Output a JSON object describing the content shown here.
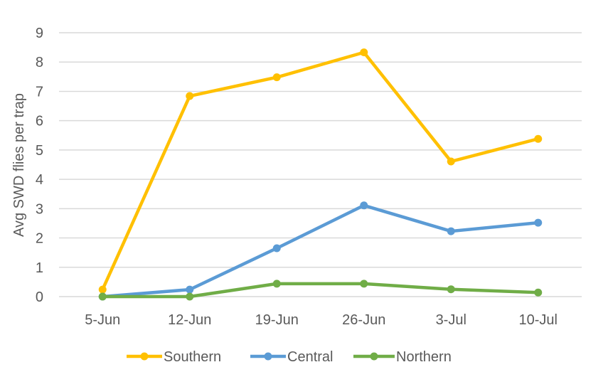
{
  "chart_data": {
    "type": "line",
    "title": "",
    "xlabel": "",
    "ylabel": "Avg SWD flies per trap",
    "ylim": [
      0,
      9
    ],
    "yticks": [
      0,
      1,
      2,
      3,
      4,
      5,
      6,
      7,
      8,
      9
    ],
    "grid": true,
    "legend_position": "bottom",
    "categories": [
      "5-Jun",
      "12-Jun",
      "19-Jun",
      "26-Jun",
      "3-Jul",
      "10-Jul"
    ],
    "series": [
      {
        "name": "Southern",
        "color": "#FFC000",
        "values": [
          0.24,
          6.84,
          7.48,
          8.33,
          4.61,
          5.38
        ]
      },
      {
        "name": "Central",
        "color": "#5B9BD5",
        "values": [
          0.0,
          0.24,
          1.65,
          3.11,
          2.23,
          2.52
        ]
      },
      {
        "name": "Northern",
        "color": "#70AD47",
        "values": [
          0.0,
          0.0,
          0.44,
          0.44,
          0.25,
          0.14
        ]
      }
    ]
  },
  "colors": {
    "gridline": "#D9D9D9",
    "text": "#595959",
    "background": "#FFFFFF"
  }
}
